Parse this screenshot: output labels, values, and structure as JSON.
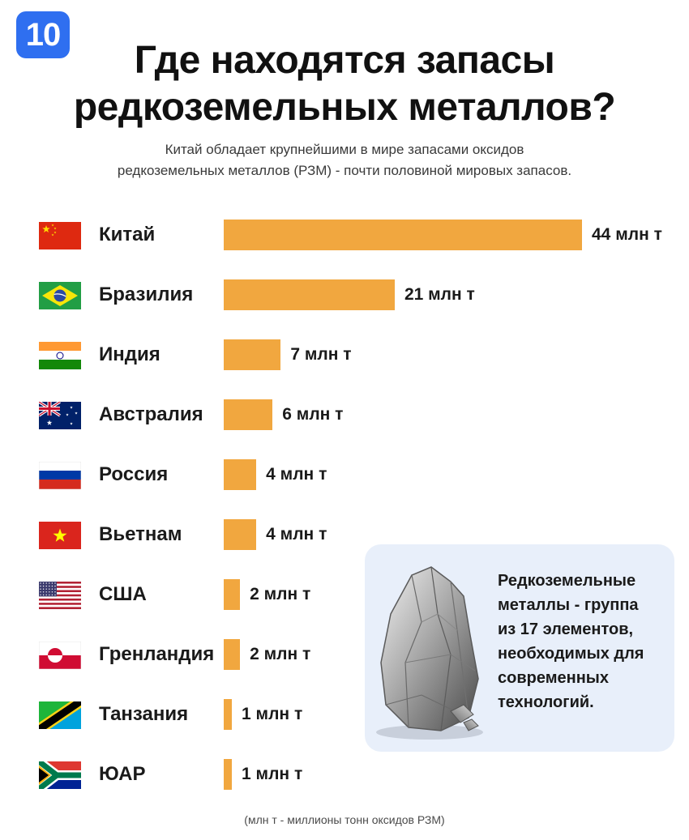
{
  "badge": "10",
  "title": [
    "Где находятся запасы",
    "редкоземельных металлов?"
  ],
  "subtitle": [
    "Китай обладает крупнейшими в мире запасами оксидов",
    "редкоземельных металлов (РЗМ) - почти половиной мировых запасов."
  ],
  "colors": {
    "bar": "#f1a73f",
    "badge": "#2f6ff0",
    "info_bg": "#e8effa"
  },
  "chart_data": {
    "type": "bar",
    "orientation": "horizontal",
    "unit": "млн т",
    "categories": [
      "Китай",
      "Бразилия",
      "Индия",
      "Австралия",
      "Россия",
      "Вьетнам",
      "США",
      "Гренландия",
      "Танзания",
      "ЮАР"
    ],
    "values": [
      44,
      21,
      7,
      6,
      4,
      4,
      2,
      2,
      1,
      1
    ],
    "value_labels": [
      "44 млн т",
      "21 млн т",
      "7 млн т",
      "6 млн т",
      "4 млн т",
      "4 млн т",
      "2 млн т",
      "2 млн т",
      "1 млн т",
      "1 млн т"
    ],
    "flags": [
      "china-flag",
      "brazil-flag",
      "india-flag",
      "australia-flag",
      "russia-flag",
      "vietnam-flag",
      "usa-flag",
      "greenland-flag",
      "tanzania-flag",
      "south-africa-flag"
    ],
    "xlim": [
      0,
      44
    ],
    "grid": false,
    "legend": "none"
  },
  "info": {
    "lines": [
      "Редкоземельные",
      "металлы - группа",
      "из 17 элементов,",
      "необходимых для",
      "современных",
      "технологий."
    ],
    "image": "rare-earth-ore-rock"
  },
  "footnote": "(млн т - миллионы тонн оксидов РЗМ)"
}
